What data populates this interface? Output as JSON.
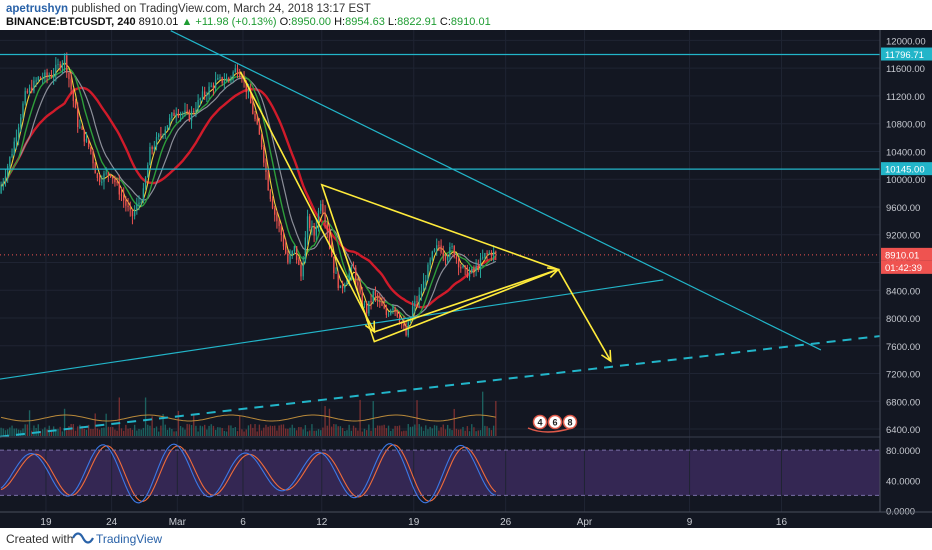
{
  "header": {
    "user": "apetrushyn",
    "published_text": "published on TradingView.com, March 24, 2018 13:17 EST",
    "symbol_line": "BINANCE:BTCUSDT, 240",
    "last": "8910.01",
    "change": "+11.98 (+0.13%)",
    "o_label": "O:",
    "o": "8950.00",
    "h_label": "H:",
    "h": "8954.63",
    "l_label": "L:",
    "l": "8822.91",
    "c_label": "C:",
    "c": "8910.01"
  },
  "footer": {
    "created": "Created with",
    "brand": "TradingView"
  },
  "colors": {
    "background": "#131722",
    "up": "#26a69a",
    "down": "#ef5350",
    "annotation": "#ffeb3b",
    "trendline": "#22b5c9",
    "stoch_bg": "#3b2a5c"
  },
  "chart_data": {
    "type": "candlestick",
    "price_axis": {
      "ylim": [
        6300,
        12150
      ],
      "ticks": [
        12000,
        11600,
        11200,
        10800,
        10400,
        10000,
        9600,
        9200,
        8800,
        8400,
        8000,
        7600,
        7200,
        6800,
        6400
      ],
      "tick_labels": [
        "12000.00",
        "11600.00",
        "11200.00",
        "10800.00",
        "10400.00",
        "10000.00",
        "9600.00",
        "9200.00",
        "8800.00",
        "8400.00",
        "8000.00",
        "7600.00",
        "7200.00",
        "6800.00",
        "6400.00"
      ],
      "highlights": [
        {
          "value": 11796.71,
          "label": "11796.71",
          "color": "#22b5c9"
        },
        {
          "value": 10145.0,
          "label": "10145.00",
          "color": "#22b5c9"
        },
        {
          "value": 8910.01,
          "label": "8910.01",
          "color": "#ef5350"
        }
      ],
      "countdown": "01:42:39"
    },
    "time_axis": {
      "labels": [
        {
          "label": "19",
          "day": 19
        },
        {
          "label": "24",
          "day": 24
        },
        {
          "label": "Mar",
          "day": 29
        },
        {
          "label": "6",
          "day": 34
        },
        {
          "label": "12",
          "day": 40
        },
        {
          "label": "19",
          "day": 47
        },
        {
          "label": "26",
          "day": 54
        },
        {
          "label": "Apr",
          "day": 60
        },
        {
          "label": "9",
          "day": 68
        },
        {
          "label": "16",
          "day": 75
        }
      ],
      "xlim": [
        15.5,
        82.5
      ]
    },
    "price_path": [
      [
        15.5,
        9800
      ],
      [
        16.5,
        10400
      ],
      [
        17.5,
        11200
      ],
      [
        18.5,
        11450
      ],
      [
        19.5,
        11500
      ],
      [
        20.5,
        11750
      ],
      [
        21.0,
        11300
      ],
      [
        21.5,
        10800
      ],
      [
        22.5,
        10400
      ],
      [
        23.0,
        10000
      ],
      [
        24.0,
        10100
      ],
      [
        25.0,
        9700
      ],
      [
        25.6,
        9450
      ],
      [
        26.5,
        9800
      ],
      [
        27.0,
        10400
      ],
      [
        28.0,
        10700
      ],
      [
        29.0,
        11000
      ],
      [
        30.0,
        10900
      ],
      [
        31.0,
        11200
      ],
      [
        32.0,
        11400
      ],
      [
        33.0,
        11450
      ],
      [
        33.6,
        11600
      ],
      [
        34.0,
        11500
      ],
      [
        34.5,
        11200
      ],
      [
        35.5,
        10500
      ],
      [
        36.0,
        9900
      ],
      [
        36.5,
        9500
      ],
      [
        37.0,
        9200
      ],
      [
        37.5,
        8800
      ],
      [
        38.0,
        9000
      ],
      [
        38.5,
        8600
      ],
      [
        39.0,
        9400
      ],
      [
        39.5,
        9200
      ],
      [
        40.0,
        9700
      ],
      [
        40.5,
        9300
      ],
      [
        41.0,
        8700
      ],
      [
        41.5,
        8400
      ],
      [
        42.0,
        8600
      ],
      [
        42.5,
        8700
      ],
      [
        43.0,
        8300
      ],
      [
        43.5,
        8100
      ],
      [
        44.0,
        8350
      ],
      [
        44.5,
        8200
      ],
      [
        45.0,
        8050
      ],
      [
        45.5,
        8200
      ],
      [
        46.0,
        8000
      ],
      [
        46.5,
        7750
      ],
      [
        47.0,
        8150
      ],
      [
        47.5,
        8300
      ],
      [
        48.0,
        8600
      ],
      [
        48.5,
        8900
      ],
      [
        49.0,
        9050
      ],
      [
        49.5,
        8900
      ],
      [
        50.0,
        9000
      ],
      [
        50.5,
        8800
      ],
      [
        51.0,
        8650
      ],
      [
        51.5,
        8650
      ],
      [
        52.0,
        8750
      ],
      [
        52.5,
        8900
      ],
      [
        53.0,
        8950
      ],
      [
        53.3,
        8910
      ]
    ],
    "volume_axis": {
      "ylim": [
        0,
        100
      ]
    },
    "stochastic": {
      "ylim": [
        -2,
        96
      ],
      "ticks": [
        80,
        40,
        0
      ],
      "tick_labels": [
        "80.0000",
        "40.0000",
        "0.0000"
      ],
      "upper_band": 80,
      "lower_band": 20
    },
    "annotations": {
      "event_badges": [
        "4",
        "6",
        "8"
      ],
      "trend_down": {
        "from": [
          28.5,
          12140
        ],
        "to": [
          78.0,
          7540
        ]
      },
      "support_up": {
        "from": [
          15.5,
          7120
        ],
        "to": [
          66.0,
          8550
        ]
      },
      "support_dashed": {
        "from": [
          15.5,
          6290
        ],
        "to": [
          82.5,
          7740
        ]
      },
      "level_lines": [
        11796.71,
        10145.0
      ],
      "triangle": [
        [
          40.0,
          9920
        ],
        [
          58.0,
          8700
        ],
        [
          44.0,
          7660
        ]
      ],
      "yellow_path": [
        [
          33.8,
          11550
        ],
        [
          44.0,
          7800
        ],
        [
          58.0,
          8700
        ],
        [
          62.0,
          7380
        ]
      ]
    }
  }
}
